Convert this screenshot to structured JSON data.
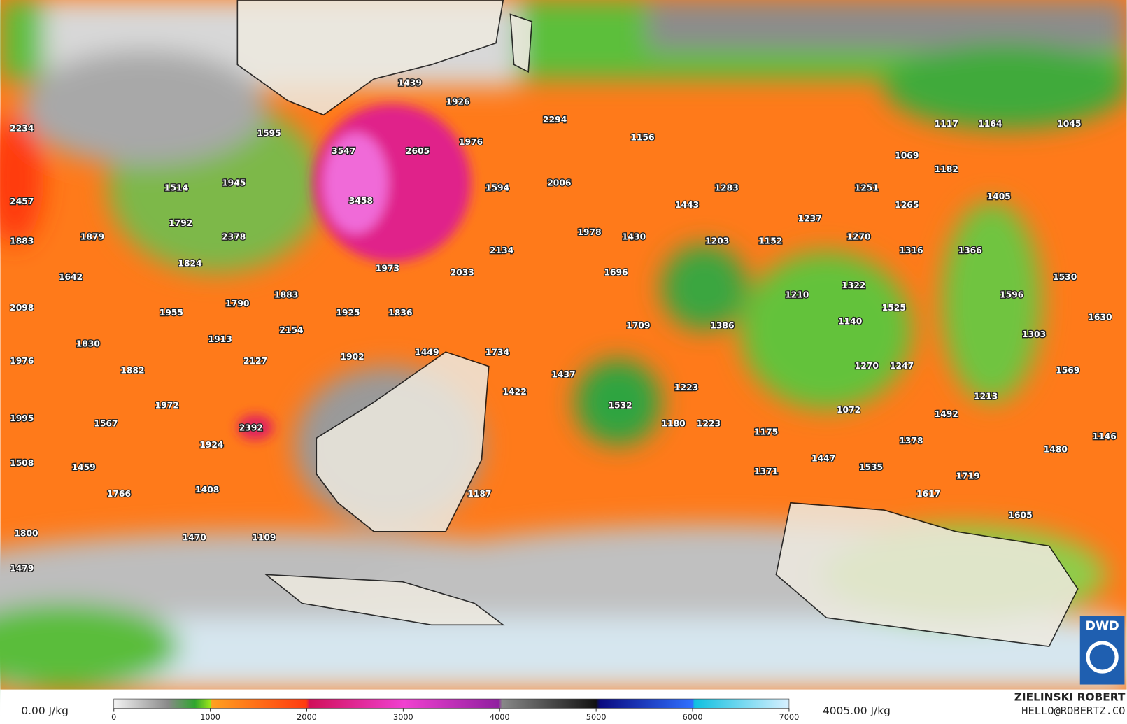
{
  "map": {
    "labels": [
      1439,
      1926,
      2294,
      1156,
      1117,
      1164,
      1045,
      2234,
      1595,
      3547,
      2605,
      1976,
      1069,
      1182,
      1514,
      1945,
      1594,
      2006,
      1283,
      1251,
      1405,
      2457,
      3458,
      1443,
      1265,
      1237,
      1792,
      1978,
      1430,
      1203,
      1152,
      1270,
      1883,
      1879,
      2378,
      1316,
      1366,
      1824,
      1973,
      2033,
      2134,
      1696,
      1642,
      1530,
      1883,
      1790,
      1210,
      1322,
      1596,
      2098,
      1955,
      1925,
      1836,
      1525,
      1709,
      1386,
      1140,
      1630,
      2154,
      1303,
      1913,
      1830,
      1449,
      1734,
      1976,
      2127,
      1902,
      1270,
      1247,
      1882,
      1437,
      1569,
      1422,
      1223,
      1213,
      1532,
      1972,
      1072,
      1492,
      1567,
      1995,
      2392,
      1180,
      1223,
      1175,
      1146,
      1378,
      1480,
      1924,
      1447,
      1535,
      1508,
      1459,
      1371,
      1719,
      1408,
      1766,
      1187,
      1617,
      1605,
      1470,
      1109,
      1800,
      1479
    ]
  },
  "colorbar": {
    "ticks": [
      0,
      1000,
      2000,
      3000,
      4000,
      5000,
      6000,
      7000
    ],
    "min_label": "0.00 J/kg",
    "max_label": "4005.00 J/kg"
  },
  "credits": {
    "author": "ZIELINSKI ROBERT",
    "contact": "HELLO@ROBERTZ.CO",
    "logo": "DWD"
  }
}
